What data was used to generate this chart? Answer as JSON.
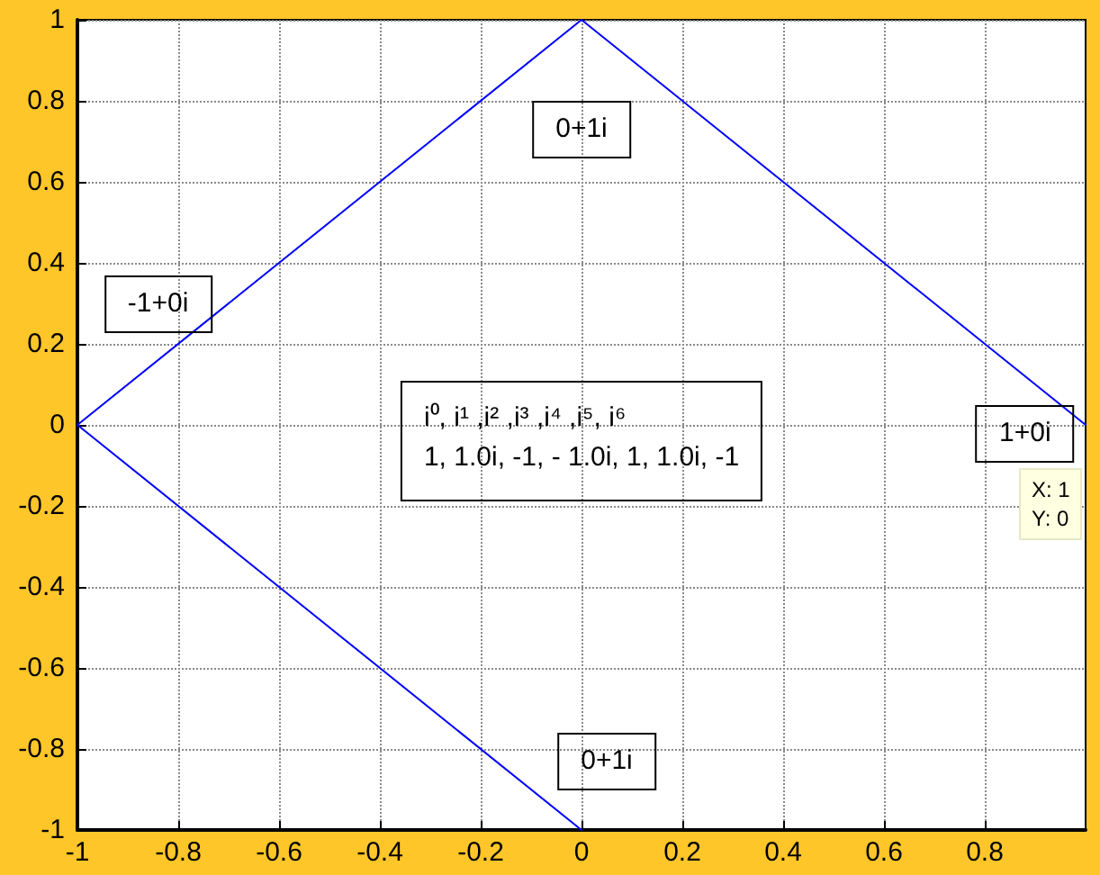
{
  "chart_data": {
    "type": "line",
    "x": [
      1,
      0,
      -1,
      0
    ],
    "series": [
      {
        "color": "#0000ff",
        "values": [
          0,
          1,
          0,
          -1
        ]
      }
    ],
    "xlim": [
      -1,
      1
    ],
    "xticks": [
      -1,
      -0.8,
      -0.6,
      -0.4,
      -0.2,
      0,
      0.2,
      0.4,
      0.6,
      0.8
    ],
    "ylim": [
      -1,
      1
    ],
    "yticks": [
      -1,
      -0.8,
      -0.6,
      -0.4,
      -0.2,
      0,
      0.2,
      0.4,
      0.6,
      0.8,
      1
    ],
    "grid": true,
    "marker": "none",
    "annotations": [
      "0+1i",
      "-1+0i",
      "1+0i",
      "0+1i",
      "i⁰, i¹ ,i² ,i³ ,i⁴ ,i⁵, i⁶\n1, 1.0i, -1, - 1.0i, 1, 1.0i, -1",
      {
        "text": "X: 1\nY: 0",
        "x": 1,
        "y": 0
      }
    ]
  }
}
